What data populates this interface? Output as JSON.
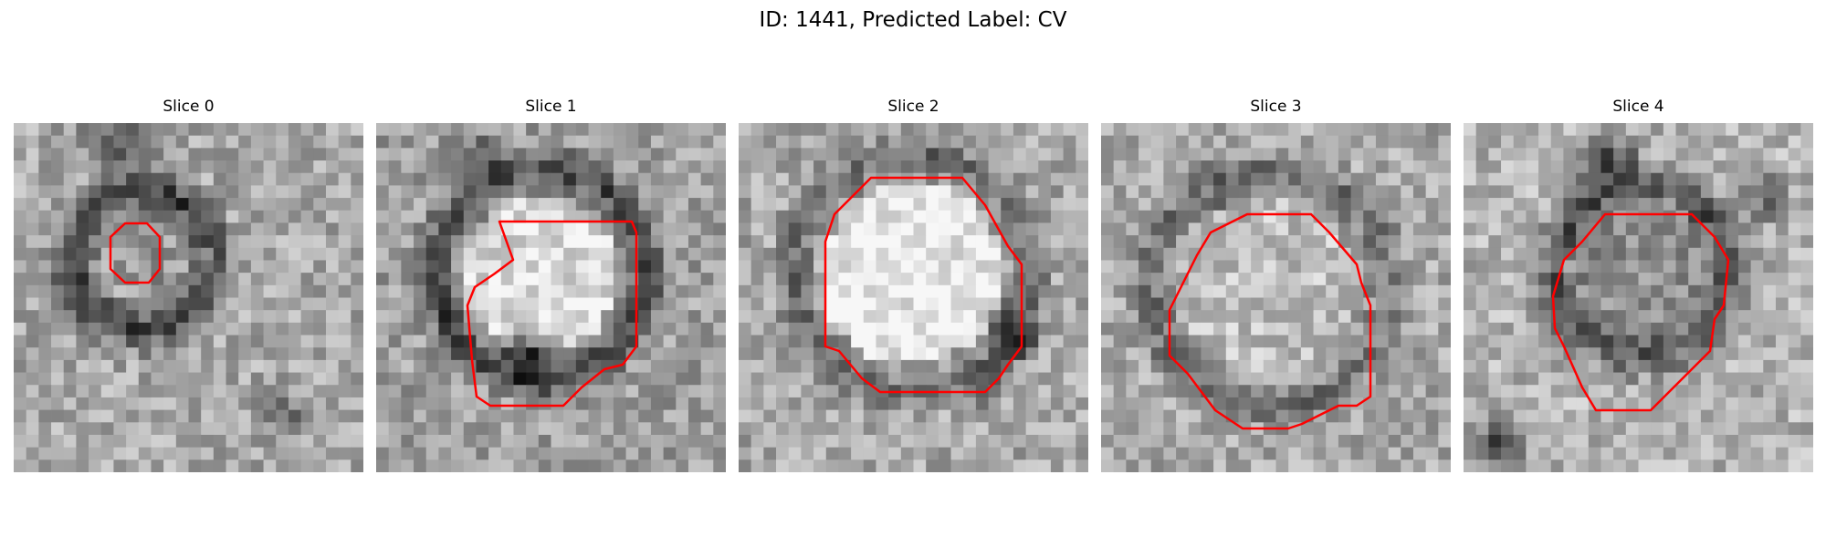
{
  "figure": {
    "title": "ID: 1441, Predicted Label: CV"
  },
  "panels": [
    {
      "title": "Slice 0"
    },
    {
      "title": "Slice 1"
    },
    {
      "title": "Slice 2"
    },
    {
      "title": "Slice 3"
    },
    {
      "title": "Slice 4"
    }
  ],
  "colors": {
    "contour": "#ff0000",
    "background": "#ffffff"
  }
}
